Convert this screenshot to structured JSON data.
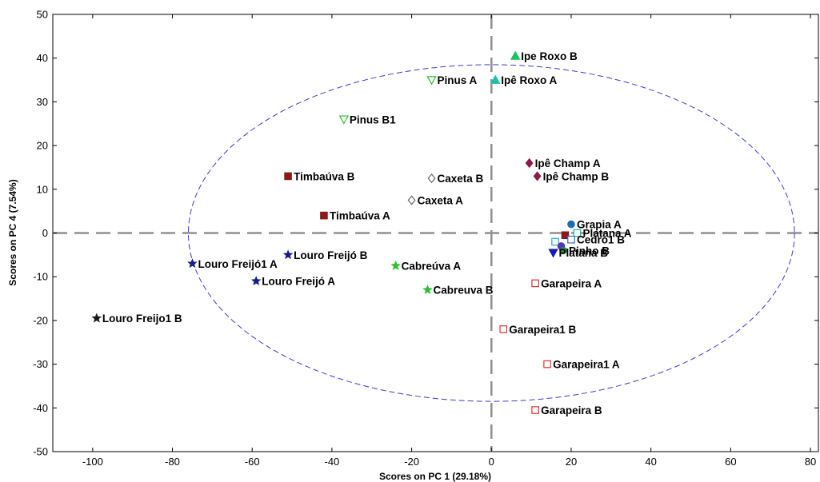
{
  "chart_data": {
    "type": "scatter",
    "title": "",
    "xlabel": "Scores on PC 1 (29.18%)",
    "ylabel": "Scores on PC 4 (7.54%)",
    "xlim": [
      -110,
      82
    ],
    "ylim": [
      -50,
      50
    ],
    "xticks": [
      -100,
      -80,
      -60,
      -40,
      -20,
      0,
      20,
      40,
      60,
      80
    ],
    "yticks": [
      -50,
      -40,
      -30,
      -20,
      -10,
      0,
      10,
      20,
      30,
      40,
      50
    ],
    "grid": false,
    "reference_lines": {
      "x": 0,
      "y": 0,
      "style": "dashed",
      "color": "#909090"
    },
    "confidence_ellipse": {
      "cx": 0,
      "cy": 0,
      "rx": 76,
      "ry": 38.5,
      "color": "#3b3bd6",
      "style": "dashed"
    },
    "points": [
      {
        "label": "Ipe Roxo B",
        "x": 6,
        "y": 40.5,
        "marker": "triangle-up",
        "color": "#19c25a",
        "filled": true
      },
      {
        "label": "Ipê Roxo A",
        "x": 1,
        "y": 35,
        "marker": "triangle-up",
        "color": "#19c2a0",
        "filled": true
      },
      {
        "label": "Pinus A",
        "x": -15,
        "y": 35,
        "marker": "triangle-down",
        "color": "#2fbf2f",
        "filled": false
      },
      {
        "label": "Pinus B1",
        "x": -37,
        "y": 26,
        "marker": "triangle-down",
        "color": "#2fbf2f",
        "filled": false
      },
      {
        "label": "Ipê Champ A",
        "x": 9.5,
        "y": 16,
        "marker": "diamond",
        "color": "#8b1a4a",
        "filled": true
      },
      {
        "label": "Ipê Champ B",
        "x": 11.5,
        "y": 13,
        "marker": "diamond",
        "color": "#8b1a4a",
        "filled": true
      },
      {
        "label": "Timbaúva B",
        "x": -51,
        "y": 13,
        "marker": "square",
        "color": "#8b1a1a",
        "filled": true
      },
      {
        "label": "Caxeta B",
        "x": -15,
        "y": 12.5,
        "marker": "diamond",
        "color": "#666666",
        "filled": false
      },
      {
        "label": "Caxeta A",
        "x": -20,
        "y": 7.5,
        "marker": "diamond",
        "color": "#666666",
        "filled": false
      },
      {
        "label": "Timbaúva A",
        "x": -42,
        "y": 4,
        "marker": "square",
        "color": "#8b1a1a",
        "filled": true
      },
      {
        "label": "Grapia A",
        "x": 20,
        "y": 2,
        "marker": "circle",
        "color": "#1a6fb3",
        "filled": true
      },
      {
        "label": "Platana A",
        "x": 21.5,
        "y": 0,
        "marker": "square",
        "color": "#1ab3b3",
        "filled": false
      },
      {
        "label": "Cedro1 B",
        "x": 20,
        "y": -1.5,
        "marker": "square",
        "color": "#2f6fbf",
        "filled": false
      },
      {
        "label": "Pinho B",
        "x": 18,
        "y": -4,
        "marker": "circle",
        "color": "#1a8f4a",
        "filled": true
      },
      {
        "label": "Platana B",
        "x": 15.5,
        "y": -4.5,
        "marker": "triangle-down",
        "color": "#1a1ab3",
        "filled": true
      },
      {
        "label": "Louro Freijó1 A",
        "x": -75,
        "y": -7,
        "marker": "star",
        "color": "#1a1a8f",
        "filled": true
      },
      {
        "label": "Louro Freijó B",
        "x": -51,
        "y": -5,
        "marker": "star",
        "color": "#1a1a8f",
        "filled": true
      },
      {
        "label": "Louro Freijó A",
        "x": -59,
        "y": -11,
        "marker": "star",
        "color": "#1a1a8f",
        "filled": true
      },
      {
        "label": "Cabreúva A",
        "x": -24,
        "y": -7.5,
        "marker": "star",
        "color": "#2fbf2f",
        "filled": true
      },
      {
        "label": "Cabreuva B",
        "x": -16,
        "y": -13,
        "marker": "star",
        "color": "#2fbf2f",
        "filled": true
      },
      {
        "label": "Louro Freijo1 B",
        "x": -99,
        "y": -19.5,
        "marker": "star",
        "color": "#1a1a1a",
        "filled": true
      },
      {
        "label": "Garapeira A",
        "x": 11,
        "y": -11.5,
        "marker": "square",
        "color": "#e03030",
        "filled": false
      },
      {
        "label": "Garapeira1 B",
        "x": 3,
        "y": -22,
        "marker": "square",
        "color": "#e03030",
        "filled": false
      },
      {
        "label": "Garapeira1 A",
        "x": 14,
        "y": -30,
        "marker": "square",
        "color": "#e03030",
        "filled": false
      },
      {
        "label": "Garapeira B",
        "x": 11,
        "y": -40.5,
        "marker": "square",
        "color": "#e03030",
        "filled": false
      }
    ],
    "unlabeled_points": [
      {
        "x": 16,
        "y": -2,
        "marker": "square",
        "color": "#1ab3b3",
        "filled": false
      },
      {
        "x": 18.5,
        "y": -0.5,
        "marker": "square",
        "color": "#8b1a1a",
        "filled": true
      },
      {
        "x": 17.5,
        "y": -3,
        "marker": "circle",
        "color": "#5a2fbf",
        "filled": true
      }
    ]
  }
}
